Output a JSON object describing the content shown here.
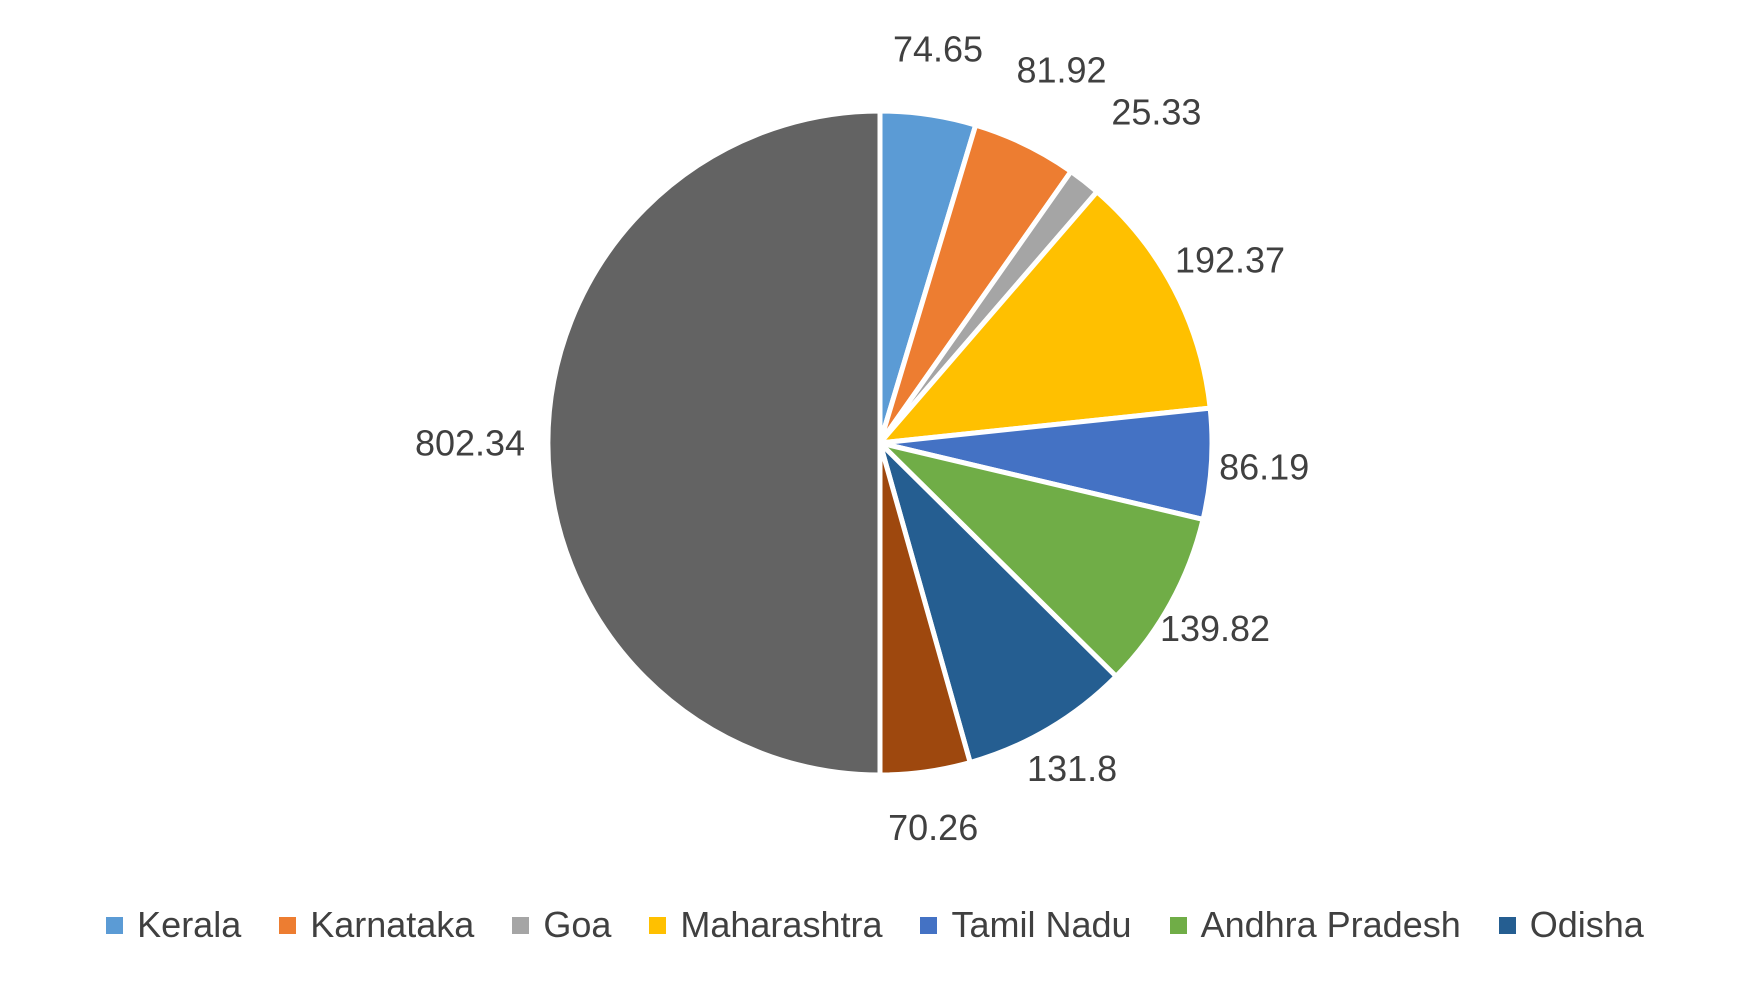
{
  "chart_data": {
    "type": "pie",
    "title": "",
    "slices": [
      {
        "label": "Kerala",
        "value": 74.65,
        "color": "#5B9BD5",
        "in_legend": true
      },
      {
        "label": "Karnataka",
        "value": 81.92,
        "color": "#ED7D31",
        "in_legend": true
      },
      {
        "label": "Goa",
        "value": 25.33,
        "color": "#A5A5A5",
        "in_legend": true
      },
      {
        "label": "Maharashtra",
        "value": 192.37,
        "color": "#FFC000",
        "in_legend": true
      },
      {
        "label": "Tamil Nadu",
        "value": 86.19,
        "color": "#4472C4",
        "in_legend": true
      },
      {
        "label": "Andhra Pradesh",
        "value": 139.82,
        "color": "#70AD47",
        "in_legend": true
      },
      {
        "label": "Odisha",
        "value": 131.8,
        "color": "#255E91",
        "in_legend": true
      },
      {
        "label": "",
        "value": 70.26,
        "color": "#9E480E",
        "in_legend": false
      },
      {
        "label": "",
        "value": 802.34,
        "color": "#636363",
        "in_legend": false
      }
    ],
    "data_label_display": [
      "74.65",
      "81.92",
      "25.33",
      "192.37",
      "86.19",
      "139.82",
      "131.8",
      "70.26",
      "802.34"
    ],
    "start_angle": "12 o'clock",
    "direction": "clockwise",
    "legend_position": "bottom"
  }
}
